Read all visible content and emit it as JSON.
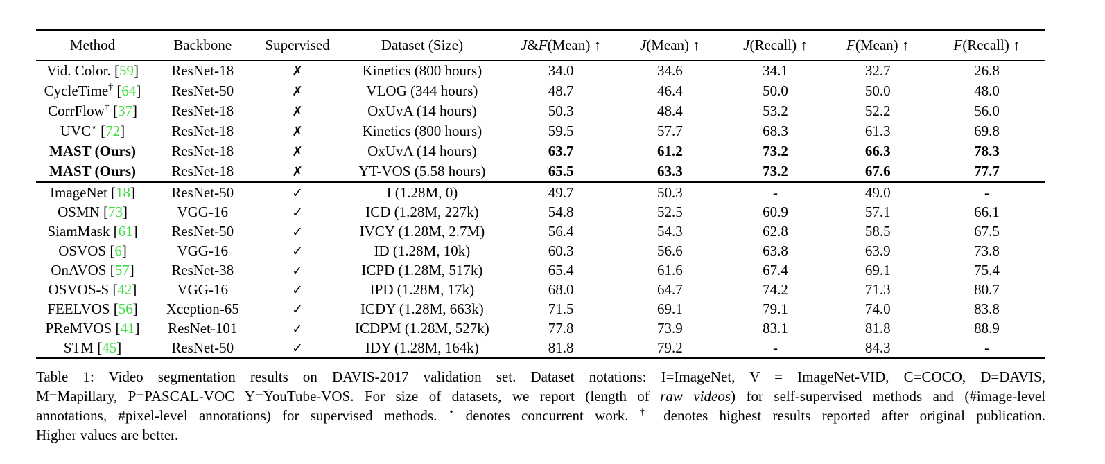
{
  "colors": {
    "citation_green": "#3add3a",
    "text": "#000000",
    "background": "#ffffff"
  },
  "table": {
    "headers": [
      {
        "id": "method",
        "parts": [
          {
            "text": "Method"
          }
        ]
      },
      {
        "id": "backbone",
        "parts": [
          {
            "text": "Backbone"
          }
        ]
      },
      {
        "id": "supervised",
        "parts": [
          {
            "text": "Supervised"
          }
        ]
      },
      {
        "id": "dataset",
        "parts": [
          {
            "text": "Dataset (Size)"
          }
        ]
      },
      {
        "id": "jf-mean",
        "parts": [
          {
            "text": "J",
            "style": "cal"
          },
          {
            "text": "&"
          },
          {
            "text": "F",
            "style": "cal"
          },
          {
            "text": "(Mean) ↑"
          }
        ]
      },
      {
        "id": "j-mean",
        "parts": [
          {
            "text": "J",
            "style": "cal"
          },
          {
            "text": "(Mean) ↑"
          }
        ]
      },
      {
        "id": "j-recall",
        "parts": [
          {
            "text": "J",
            "style": "cal"
          },
          {
            "text": "(Recall) ↑"
          }
        ]
      },
      {
        "id": "f-mean",
        "parts": [
          {
            "text": "F",
            "style": "cal"
          },
          {
            "text": "(Mean) ↑"
          }
        ]
      },
      {
        "id": "f-recall",
        "parts": [
          {
            "text": "F",
            "style": "cal"
          },
          {
            "text": "(Recall) ↑"
          }
        ]
      }
    ],
    "marks": {
      "supervised_yes": "✓",
      "supervised_no": "✗"
    },
    "sections": [
      {
        "name": "self-supervised",
        "rows": [
          {
            "method": "Vid. Color.",
            "sup": "",
            "cite": "59",
            "backbone": "ResNet-18",
            "supervised": false,
            "dataset": "Kinetics (800 hours)",
            "values": [
              "34.0",
              "34.6",
              "34.1",
              "32.7",
              "26.8"
            ],
            "bold": false
          },
          {
            "method": "CycleTime",
            "sup": "†",
            "cite": "64",
            "backbone": "ResNet-50",
            "supervised": false,
            "dataset": "VLOG (344 hours)",
            "values": [
              "48.7",
              "46.4",
              "50.0",
              "50.0",
              "48.0"
            ],
            "bold": false
          },
          {
            "method": "CorrFlow",
            "sup": "†",
            "cite": "37",
            "backbone": "ResNet-18",
            "supervised": false,
            "dataset": "OxUvA (14 hours)",
            "values": [
              "50.3",
              "48.4",
              "53.2",
              "52.2",
              "56.0"
            ],
            "bold": false
          },
          {
            "method": "UVC",
            "sup": "⋆",
            "cite": "72",
            "backbone": "ResNet-18",
            "supervised": false,
            "dataset": "Kinetics (800 hours)",
            "values": [
              "59.5",
              "57.7",
              "68.3",
              "61.3",
              "69.8"
            ],
            "bold": false
          },
          {
            "method": "MAST (Ours)",
            "sup": "",
            "cite": "",
            "backbone": "ResNet-18",
            "supervised": false,
            "dataset": "OxUvA (14 hours)",
            "values": [
              "63.7",
              "61.2",
              "73.2",
              "66.3",
              "78.3"
            ],
            "bold": true
          },
          {
            "method": "MAST (Ours)",
            "sup": "",
            "cite": "",
            "backbone": "ResNet-18",
            "supervised": false,
            "dataset": "YT-VOS (5.58 hours)",
            "values": [
              "65.5",
              "63.3",
              "73.2",
              "67.6",
              "77.7"
            ],
            "bold": true
          }
        ]
      },
      {
        "name": "supervised",
        "rows": [
          {
            "method": "ImageNet",
            "sup": "",
            "cite": "18",
            "backbone": "ResNet-50",
            "supervised": true,
            "dataset": "I (1.28M, 0)",
            "values": [
              "49.7",
              "50.3",
              "-",
              "49.0",
              "-"
            ],
            "bold": false
          },
          {
            "method": "OSMN",
            "sup": "",
            "cite": "73",
            "backbone": "VGG-16",
            "supervised": true,
            "dataset": "ICD (1.28M, 227k)",
            "values": [
              "54.8",
              "52.5",
              "60.9",
              "57.1",
              "66.1"
            ],
            "bold": false
          },
          {
            "method": "SiamMask",
            "sup": "",
            "cite": "61",
            "backbone": "ResNet-50",
            "supervised": true,
            "dataset": "IVCY (1.28M, 2.7M)",
            "values": [
              "56.4",
              "54.3",
              "62.8",
              "58.5",
              "67.5"
            ],
            "bold": false
          },
          {
            "method": "OSVOS",
            "sup": "",
            "cite": "6",
            "backbone": "VGG-16",
            "supervised": true,
            "dataset": "ID (1.28M, 10k)",
            "values": [
              "60.3",
              "56.6",
              "63.8",
              "63.9",
              "73.8"
            ],
            "bold": false
          },
          {
            "method": "OnAVOS",
            "sup": "",
            "cite": "57",
            "backbone": "ResNet-38",
            "supervised": true,
            "dataset": "ICPD (1.28M, 517k)",
            "values": [
              "65.4",
              "61.6",
              "67.4",
              "69.1",
              "75.4"
            ],
            "bold": false
          },
          {
            "method": "OSVOS-S",
            "sup": "",
            "cite": "42",
            "backbone": "VGG-16",
            "supervised": true,
            "dataset": "IPD (1.28M, 17k)",
            "values": [
              "68.0",
              "64.7",
              "74.2",
              "71.3",
              "80.7"
            ],
            "bold": false
          },
          {
            "method": "FEELVOS",
            "sup": "",
            "cite": "56",
            "backbone": "Xception-65",
            "supervised": true,
            "dataset": "ICDY (1.28M, 663k)",
            "values": [
              "71.5",
              "69.1",
              "79.1",
              "74.0",
              "83.8"
            ],
            "bold": false
          },
          {
            "method": "PReMVOS",
            "sup": "",
            "cite": "41",
            "backbone": "ResNet-101",
            "supervised": true,
            "dataset": "ICDPM (1.28M, 527k)",
            "values": [
              "77.8",
              "73.9",
              "83.1",
              "81.8",
              "88.9"
            ],
            "bold": false
          },
          {
            "method": "STM",
            "sup": "",
            "cite": "45",
            "backbone": "ResNet-50",
            "supervised": true,
            "dataset": "IDY (1.28M, 164k)",
            "values": [
              "81.8",
              "79.2",
              "-",
              "84.3",
              "-"
            ],
            "bold": false
          }
        ]
      }
    ]
  },
  "caption": {
    "lines": [
      {
        "justify": true,
        "segments": [
          {
            "text": "Table 1:  Video segmentation results on DAVIS-2017 validation set.  Dataset notations:  I=ImageNet, V = ImageNet-VID, C=COCO, D=DAVIS,"
          }
        ]
      },
      {
        "justify": true,
        "segments": [
          {
            "text": "M=Mapillary, P=PASCAL-VOC Y=YouTube-VOS. For size of datasets, we report (length of "
          },
          {
            "text": "raw videos",
            "style": "it"
          },
          {
            "text": ") for self-supervised methods and (#image-level"
          }
        ]
      },
      {
        "justify": true,
        "segments": [
          {
            "text": "annotations, #pixel-level annotations) for supervised methods. "
          },
          {
            "text": "⋆",
            "style": "sup"
          },
          {
            "text": " denotes concurrent work. "
          },
          {
            "text": "†",
            "style": "sup"
          },
          {
            "text": " denotes highest results reported after original publication."
          }
        ]
      },
      {
        "justify": false,
        "segments": [
          {
            "text": "Higher values are better."
          }
        ]
      }
    ]
  }
}
